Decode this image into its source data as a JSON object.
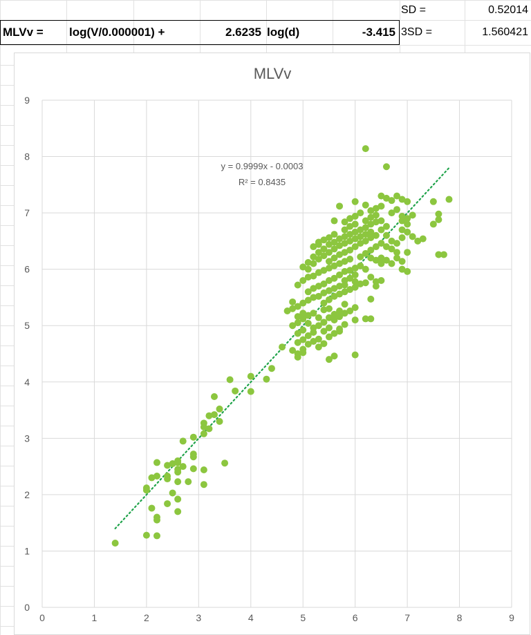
{
  "spreadsheet": {
    "row1": {
      "sd_label": "SD =",
      "sd_value": "0.52014"
    },
    "row2": {
      "name": "MLVv =",
      "formula_part1": "log(V/0.000001) +",
      "coef": "2.6235",
      "formula_part2": "log(d)",
      "intercept": "-3.415",
      "sd3_label": "3SD =",
      "sd3_value": "1.560421"
    }
  },
  "colors": {
    "points": "#8cc63f",
    "trendline": "#1fa34a",
    "grid": "#d9d9d9",
    "title": "#595959",
    "axis_text": "#595959"
  },
  "chart_data": {
    "type": "scatter",
    "title": "MLVv",
    "xlabel": "",
    "ylabel": "",
    "xlim": [
      0,
      9
    ],
    "ylim": [
      0,
      9
    ],
    "x_ticks": [
      "0",
      "1",
      "2",
      "3",
      "4",
      "5",
      "6",
      "7",
      "8",
      "9"
    ],
    "y_ticks": [
      "0",
      "1",
      "2",
      "3",
      "4",
      "5",
      "6",
      "7",
      "8",
      "9"
    ],
    "grid": true,
    "legend": "none",
    "trendline": {
      "equation": "y = 0.9999x - 0.0003",
      "r2": "R² = 0.8435",
      "slope": 0.9999,
      "intercept": -0.0003,
      "x_range": [
        1.4,
        7.8
      ]
    },
    "points": [
      [
        1.4,
        1.14
      ],
      [
        2.0,
        1.28
      ],
      [
        2.2,
        1.27
      ],
      [
        2.2,
        1.55
      ],
      [
        2.2,
        1.6
      ],
      [
        2.1,
        1.76
      ],
      [
        2.6,
        1.7
      ],
      [
        2.4,
        1.84
      ],
      [
        2.6,
        1.92
      ],
      [
        3.1,
        2.18
      ],
      [
        2.5,
        2.03
      ],
      [
        2.0,
        2.08
      ],
      [
        2.0,
        2.12
      ],
      [
        2.1,
        2.3
      ],
      [
        2.2,
        2.33
      ],
      [
        2.4,
        2.28
      ],
      [
        2.4,
        2.33
      ],
      [
        2.6,
        2.23
      ],
      [
        2.8,
        2.23
      ],
      [
        2.9,
        2.46
      ],
      [
        3.1,
        2.44
      ],
      [
        2.6,
        2.4
      ],
      [
        2.6,
        2.45
      ],
      [
        2.7,
        2.5
      ],
      [
        2.4,
        2.52
      ],
      [
        2.5,
        2.55
      ],
      [
        2.6,
        2.57
      ],
      [
        2.6,
        2.6
      ],
      [
        2.2,
        2.57
      ],
      [
        2.9,
        2.67
      ],
      [
        2.9,
        2.72
      ],
      [
        3.5,
        2.56
      ],
      [
        2.7,
        2.95
      ],
      [
        2.9,
        3.02
      ],
      [
        3.1,
        3.08
      ],
      [
        3.1,
        3.2
      ],
      [
        3.1,
        3.27
      ],
      [
        3.2,
        3.17
      ],
      [
        3.2,
        3.4
      ],
      [
        3.3,
        3.42
      ],
      [
        3.4,
        3.3
      ],
      [
        3.4,
        3.52
      ],
      [
        3.3,
        3.74
      ],
      [
        3.6,
        4.04
      ],
      [
        3.7,
        3.84
      ],
      [
        4.0,
        3.83
      ],
      [
        4.0,
        4.1
      ],
      [
        4.3,
        4.05
      ],
      [
        4.4,
        4.24
      ],
      [
        4.6,
        4.62
      ],
      [
        4.8,
        4.56
      ],
      [
        4.9,
        4.44
      ],
      [
        4.9,
        4.5
      ],
      [
        5.0,
        4.52
      ],
      [
        5.0,
        4.58
      ],
      [
        5.1,
        4.67
      ],
      [
        5.2,
        4.72
      ],
      [
        5.5,
        4.4
      ],
      [
        5.6,
        4.46
      ],
      [
        6.0,
        4.48
      ],
      [
        4.9,
        4.7
      ],
      [
        5.0,
        4.75
      ],
      [
        5.1,
        4.82
      ],
      [
        5.2,
        4.88
      ],
      [
        5.3,
        4.76
      ],
      [
        5.4,
        4.9
      ],
      [
        5.5,
        4.96
      ],
      [
        5.7,
        4.94
      ],
      [
        5.8,
        5.02
      ],
      [
        6.0,
        5.1
      ],
      [
        4.8,
        5.0
      ],
      [
        4.9,
        5.05
      ],
      [
        5.0,
        5.12
      ],
      [
        5.1,
        5.18
      ],
      [
        5.2,
        5.22
      ],
      [
        5.3,
        5.14
      ],
      [
        5.4,
        5.28
      ],
      [
        5.5,
        5.3
      ],
      [
        5.6,
        5.2
      ],
      [
        5.7,
        5.26
      ],
      [
        5.8,
        5.38
      ],
      [
        6.0,
        5.32
      ],
      [
        6.2,
        5.12
      ],
      [
        6.3,
        5.12
      ],
      [
        4.8,
        5.3
      ],
      [
        4.9,
        5.34
      ],
      [
        5.0,
        5.4
      ],
      [
        5.1,
        5.45
      ],
      [
        5.2,
        5.5
      ],
      [
        5.3,
        5.52
      ],
      [
        5.4,
        5.58
      ],
      [
        5.5,
        5.62
      ],
      [
        5.6,
        5.66
      ],
      [
        5.7,
        5.7
      ],
      [
        5.8,
        5.72
      ],
      [
        6.0,
        5.78
      ],
      [
        6.3,
        5.47
      ],
      [
        4.9,
        5.72
      ],
      [
        5.0,
        5.8
      ],
      [
        5.1,
        5.86
      ],
      [
        5.2,
        5.88
      ],
      [
        5.3,
        5.94
      ],
      [
        5.4,
        5.98
      ],
      [
        5.5,
        6.02
      ],
      [
        5.6,
        6.06
      ],
      [
        5.7,
        6.1
      ],
      [
        5.8,
        6.14
      ],
      [
        5.9,
        6.18
      ],
      [
        6.1,
        6.22
      ],
      [
        6.2,
        6.28
      ],
      [
        5.1,
        6.0
      ],
      [
        5.2,
        6.1
      ],
      [
        5.3,
        6.18
      ],
      [
        5.4,
        6.24
      ],
      [
        5.5,
        6.3
      ],
      [
        5.6,
        6.36
      ],
      [
        5.7,
        6.42
      ],
      [
        5.8,
        6.46
      ],
      [
        5.9,
        6.5
      ],
      [
        6.0,
        6.54
      ],
      [
        6.1,
        6.58
      ],
      [
        6.2,
        6.62
      ],
      [
        6.3,
        6.66
      ],
      [
        5.2,
        6.4
      ],
      [
        5.3,
        6.48
      ],
      [
        5.5,
        6.56
      ],
      [
        5.6,
        6.62
      ],
      [
        5.8,
        6.7
      ],
      [
        5.9,
        6.76
      ],
      [
        6.0,
        6.8
      ],
      [
        6.2,
        6.86
      ],
      [
        6.3,
        6.92
      ],
      [
        6.4,
        6.96
      ],
      [
        5.6,
        6.86
      ],
      [
        5.7,
        7.12
      ],
      [
        6.0,
        7.2
      ],
      [
        6.2,
        7.14
      ],
      [
        6.3,
        7.04
      ],
      [
        6.5,
        7.3
      ],
      [
        6.6,
        7.26
      ],
      [
        6.7,
        7.22
      ],
      [
        6.8,
        7.3
      ],
      [
        6.9,
        7.24
      ],
      [
        7.0,
        7.2
      ],
      [
        7.5,
        7.2
      ],
      [
        7.8,
        7.24
      ],
      [
        6.6,
        7.82
      ],
      [
        6.2,
        8.14
      ],
      [
        6.5,
        6.7
      ],
      [
        6.6,
        6.6
      ],
      [
        6.7,
        6.5
      ],
      [
        6.8,
        6.46
      ],
      [
        6.9,
        6.56
      ],
      [
        7.0,
        6.66
      ],
      [
        7.1,
        6.58
      ],
      [
        7.2,
        6.5
      ],
      [
        7.3,
        6.54
      ],
      [
        7.0,
        6.9
      ],
      [
        7.1,
        6.96
      ],
      [
        6.9,
        6.7
      ],
      [
        6.5,
        6.2
      ],
      [
        6.6,
        6.16
      ],
      [
        6.7,
        6.1
      ],
      [
        6.8,
        6.2
      ],
      [
        6.9,
        6.14
      ],
      [
        7.0,
        6.3
      ],
      [
        6.9,
        6.0
      ],
      [
        7.0,
        5.96
      ],
      [
        6.5,
        5.8
      ],
      [
        6.4,
        5.78
      ],
      [
        6.3,
        5.86
      ],
      [
        6.2,
        5.76
      ],
      [
        6.1,
        5.74
      ],
      [
        6.4,
        5.7
      ],
      [
        7.6,
        6.26
      ],
      [
        7.7,
        6.26
      ],
      [
        7.5,
        6.8
      ],
      [
        7.6,
        6.88
      ],
      [
        7.6,
        6.98
      ],
      [
        6.9,
        6.86
      ],
      [
        5.3,
        5.0
      ],
      [
        5.4,
        5.06
      ],
      [
        5.5,
        5.14
      ],
      [
        5.6,
        5.1
      ],
      [
        5.7,
        5.16
      ],
      [
        5.8,
        5.22
      ],
      [
        5.9,
        5.26
      ],
      [
        5.4,
        5.4
      ],
      [
        5.5,
        5.46
      ],
      [
        5.6,
        5.52
      ],
      [
        5.7,
        5.56
      ],
      [
        5.8,
        5.6
      ],
      [
        5.9,
        5.64
      ],
      [
        6.0,
        5.68
      ],
      [
        5.4,
        5.74
      ],
      [
        5.5,
        5.8
      ],
      [
        5.6,
        5.84
      ],
      [
        5.7,
        5.9
      ],
      [
        5.8,
        5.96
      ],
      [
        5.9,
        5.98
      ],
      [
        6.0,
        6.02
      ],
      [
        5.3,
        6.3
      ],
      [
        5.4,
        6.36
      ],
      [
        5.5,
        6.14
      ],
      [
        5.6,
        6.2
      ],
      [
        5.7,
        6.26
      ],
      [
        5.8,
        6.3
      ],
      [
        5.9,
        6.34
      ],
      [
        6.0,
        6.4
      ],
      [
        6.1,
        6.46
      ],
      [
        6.2,
        6.5
      ],
      [
        6.3,
        6.56
      ],
      [
        6.4,
        6.6
      ],
      [
        6.5,
        6.46
      ],
      [
        6.6,
        6.4
      ],
      [
        6.7,
        6.36
      ],
      [
        6.8,
        6.3
      ],
      [
        6.3,
        6.2
      ],
      [
        6.4,
        6.16
      ],
      [
        6.5,
        6.1
      ],
      [
        6.2,
        6.0
      ],
      [
        6.1,
        6.06
      ],
      [
        6.0,
        5.9
      ],
      [
        5.9,
        5.84
      ],
      [
        5.8,
        5.8
      ],
      [
        5.5,
        4.8
      ],
      [
        5.6,
        4.86
      ],
      [
        5.7,
        4.9
      ],
      [
        5.3,
        4.62
      ],
      [
        5.4,
        4.68
      ],
      [
        5.2,
        4.96
      ],
      [
        5.1,
        5.04
      ],
      [
        5.0,
        4.92
      ],
      [
        4.9,
        4.86
      ],
      [
        4.7,
        5.26
      ],
      [
        4.8,
        5.42
      ],
      [
        4.9,
        5.16
      ],
      [
        5.0,
        5.22
      ],
      [
        5.1,
        5.6
      ],
      [
        5.2,
        5.66
      ],
      [
        5.3,
        5.7
      ],
      [
        5.0,
        6.04
      ],
      [
        5.1,
        6.12
      ],
      [
        5.2,
        6.22
      ],
      [
        5.3,
        6.44
      ],
      [
        5.4,
        6.52
      ],
      [
        5.5,
        6.44
      ],
      [
        5.6,
        6.48
      ],
      [
        5.7,
        6.54
      ],
      [
        5.8,
        6.58
      ],
      [
        5.9,
        6.62
      ],
      [
        6.0,
        6.66
      ],
      [
        6.1,
        6.7
      ],
      [
        6.2,
        6.74
      ],
      [
        6.3,
        6.8
      ],
      [
        6.4,
        6.84
      ],
      [
        5.8,
        6.84
      ],
      [
        5.9,
        6.9
      ],
      [
        6.0,
        6.94
      ],
      [
        6.1,
        7.0
      ],
      [
        6.4,
        7.08
      ],
      [
        6.5,
        7.12
      ],
      [
        6.7,
        7.0
      ],
      [
        6.8,
        7.06
      ],
      [
        6.9,
        6.94
      ],
      [
        7.0,
        6.8
      ],
      [
        6.6,
        6.76
      ],
      [
        6.5,
        6.86
      ],
      [
        6.4,
        6.4
      ],
      [
        6.3,
        6.34
      ]
    ]
  }
}
